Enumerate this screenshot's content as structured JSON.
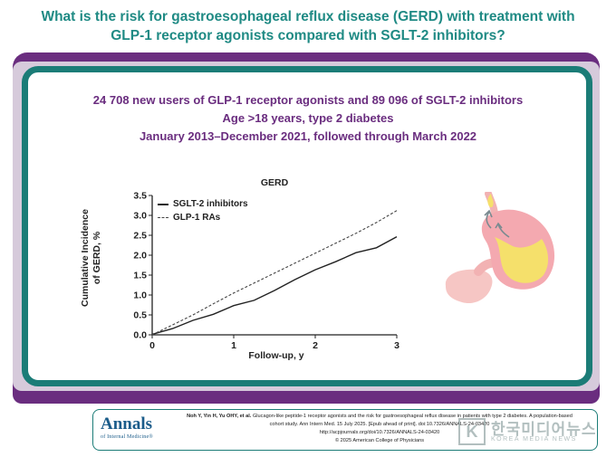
{
  "header": {
    "title_line1": "What is the risk for gastroesophageal reflux disease (GERD) with treatment with",
    "title_line2": "GLP-1 receptor agonists compared with SGLT-2 inhibitors?"
  },
  "study": {
    "line1": "24 708 new users of GLP-1 receptor agonists and 89 096 of SGLT-2 inhibitors",
    "line2": "Age >18 years, type 2 diabetes",
    "line3": "January 2013–December 2021, followed through March 2022"
  },
  "colors": {
    "title_teal": "#1f8a84",
    "band_purple": "#6a2d7f",
    "panel_border_teal": "#1b7c77",
    "study_text_purple": "#6a2d7f"
  },
  "chart_data": {
    "type": "line",
    "title": "GERD",
    "xlabel": "Follow-up, y",
    "ylabel": "Cumulative Incidence of GERD, %",
    "xlim": [
      0,
      3
    ],
    "ylim": [
      0,
      3.5
    ],
    "xticks": [
      "0",
      "1",
      "2",
      "3"
    ],
    "yticks": [
      "0.0",
      "0.5",
      "1.0",
      "1.5",
      "2.0",
      "2.5",
      "3.0",
      "3.5"
    ],
    "legend_position": "top-left",
    "grid": false,
    "series": [
      {
        "name": "SGLT-2 inhibitors",
        "style": "solid",
        "x": [
          0,
          0.25,
          0.5,
          0.75,
          1.0,
          1.25,
          1.5,
          1.75,
          2.0,
          2.25,
          2.5,
          2.75,
          3.0
        ],
        "y": [
          0,
          0.17,
          0.35,
          0.53,
          0.72,
          0.88,
          1.1,
          1.4,
          1.62,
          1.85,
          2.05,
          2.2,
          2.45
        ]
      },
      {
        "name": "GLP-1 RAs",
        "style": "dashed",
        "x": [
          0,
          0.25,
          0.5,
          0.75,
          1.0,
          1.25,
          1.5,
          1.75,
          2.0,
          2.25,
          2.5,
          2.75,
          3.0
        ],
        "y": [
          0,
          0.25,
          0.5,
          0.78,
          1.05,
          1.3,
          1.55,
          1.8,
          2.05,
          2.3,
          2.55,
          2.82,
          3.12
        ]
      }
    ]
  },
  "illustration": {
    "icon": "stomach-reflux-icon"
  },
  "footer": {
    "logo": "Annals",
    "logo_sub": "of Internal Medicine®",
    "citation_authors": "Noh Y, Yin H, Yu OHY, et al.",
    "citation_rest": "Glucagon-like peptide-1 receptor agonists and the risk for gastroesophageal reflux disease in patients with type 2 diabetes. A population-based cohort study. Ann Intern Med. 15 July 2025. [Epub ahead of print]. doi:10.7326/ANNALS-24-03420",
    "citation_url": "http://acpjournals.org/doi/10.7326/ANNALS-24-03420",
    "copyright": "© 2025 American College of Physicians"
  },
  "watermark": {
    "logo": "K",
    "text": "한국미디어뉴스",
    "sub": "KOREA MEDIA NEWS"
  }
}
